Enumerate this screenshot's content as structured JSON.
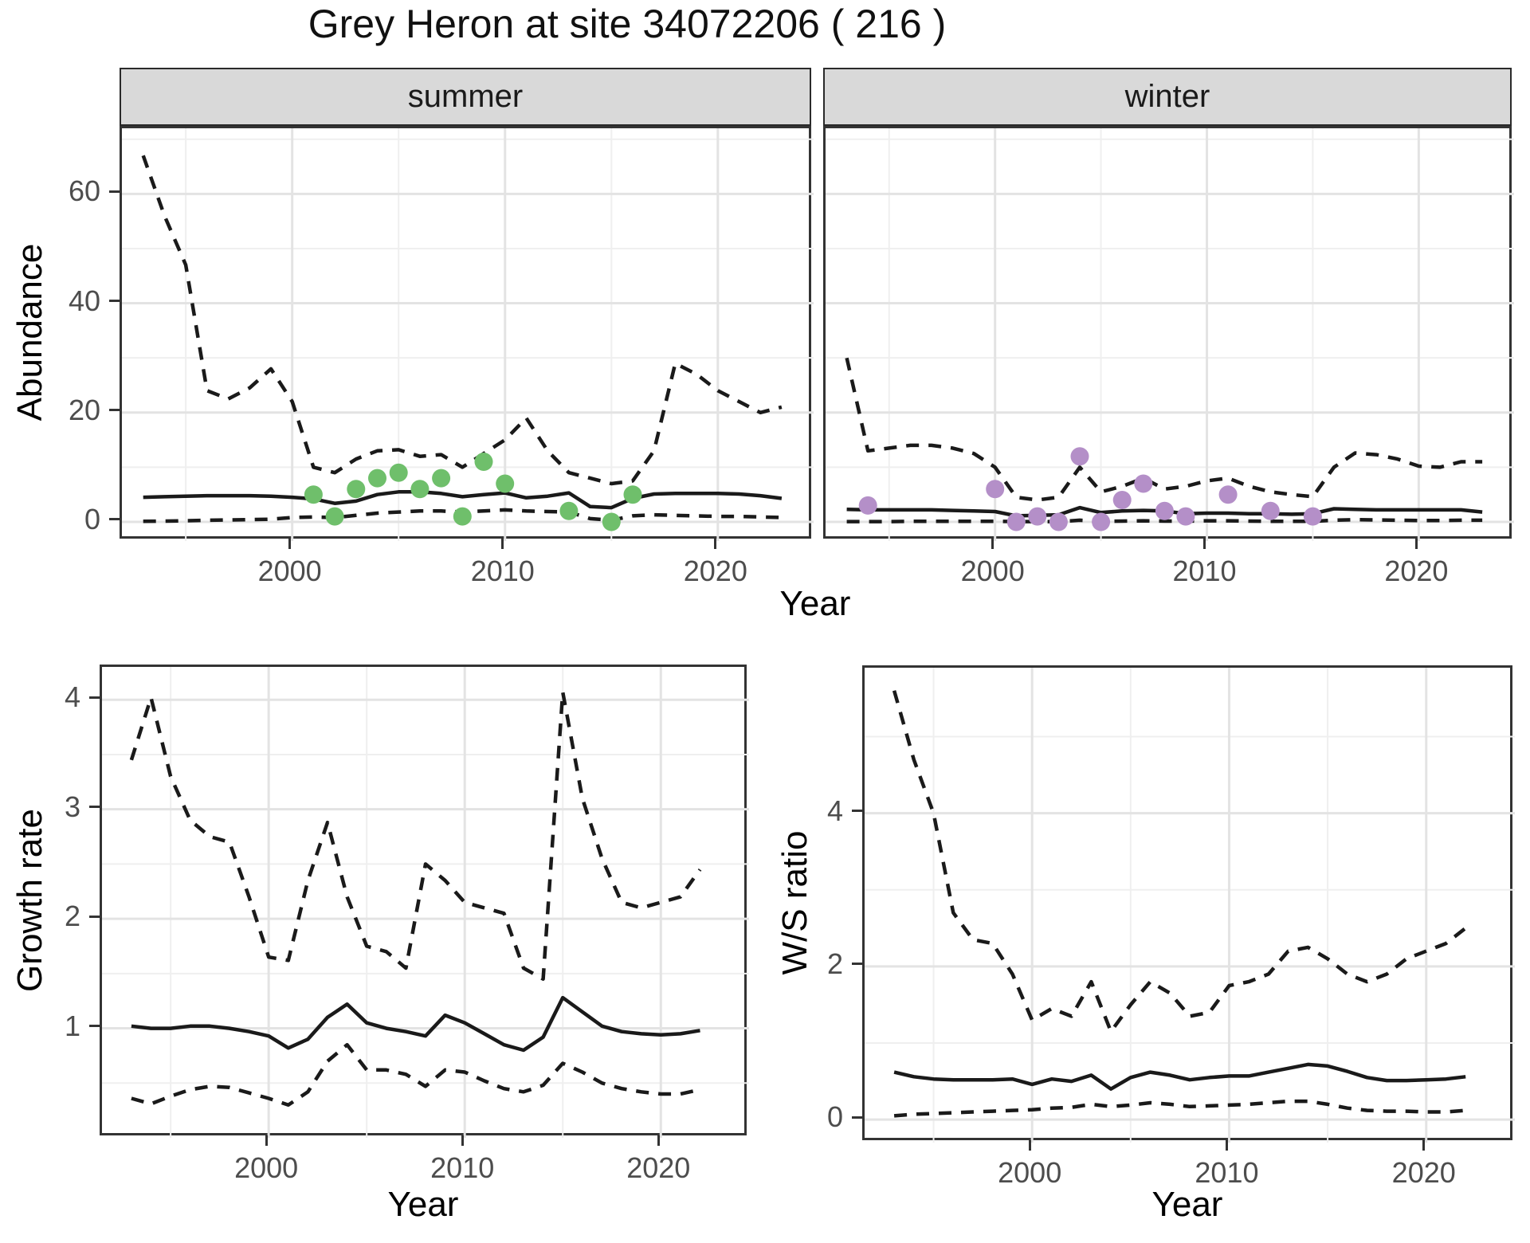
{
  "title": "Grey Heron at site 34072206 ( 216 )",
  "top_row": {
    "ylabel": "Abundance",
    "xlabel": "Year",
    "facets": [
      {
        "label": "summer"
      },
      {
        "label": "winter"
      }
    ]
  },
  "bottom_row": {
    "growth": {
      "ylabel": "Growth rate",
      "xlabel": "Year"
    },
    "ws": {
      "ylabel": "W/S ratio",
      "xlabel": "Year"
    }
  },
  "colors": {
    "summer_points": "#6fbf6b",
    "winter_points": "#b48fc8",
    "line": "#1a1a1a",
    "grid_major": "#e3e3e3",
    "grid_minor": "#efefef",
    "strip_bg": "#d9d9d9",
    "axis_text": "#4d4d4d",
    "panel_border": "#333333"
  },
  "chart_data": [
    {
      "id": "abundance_summer",
      "type": "line",
      "facet": "summer",
      "ylabel": "Abundance",
      "xlabel": "Year",
      "x_ticks": [
        2000,
        2010,
        2020
      ],
      "x_minor": [
        1995,
        2005,
        2015
      ],
      "xlim": [
        1992,
        2024.5
      ],
      "y_ticks": [
        0,
        20,
        40,
        60
      ],
      "y_minor": [
        10,
        30,
        50,
        70
      ],
      "ylim": [
        -3.5,
        72
      ],
      "years": [
        1993,
        1994,
        1995,
        1996,
        1997,
        1998,
        1999,
        2000,
        2001,
        2002,
        2003,
        2004,
        2005,
        2006,
        2007,
        2008,
        2009,
        2010,
        2011,
        2012,
        2013,
        2014,
        2015,
        2016,
        2017,
        2018,
        2019,
        2020,
        2021,
        2022,
        2023
      ],
      "series": [
        {
          "name": "upper_95ci",
          "style": "dashed",
          "values": [
            67,
            56,
            47,
            24,
            22.5,
            24.5,
            28,
            22,
            10,
            9,
            11.5,
            13,
            13.2,
            12,
            12.3,
            10,
            12.5,
            15,
            19,
            13,
            9,
            8,
            7,
            7.5,
            13,
            29,
            27,
            24,
            22,
            20,
            21
          ]
        },
        {
          "name": "mean",
          "style": "solid",
          "values": [
            4.5,
            4.6,
            4.7,
            4.8,
            4.8,
            4.8,
            4.7,
            4.5,
            4.2,
            3.4,
            3.8,
            5.0,
            5.5,
            5.5,
            5.2,
            4.6,
            5.0,
            5.3,
            4.4,
            4.7,
            5.3,
            2.8,
            2.6,
            4.3,
            5.1,
            5.2,
            5.2,
            5.2,
            5.1,
            4.8,
            4.3
          ]
        },
        {
          "name": "lower_95ci",
          "style": "dashed",
          "values": [
            0.1,
            0.15,
            0.2,
            0.3,
            0.35,
            0.4,
            0.5,
            0.8,
            0.9,
            0.8,
            1.2,
            1.6,
            1.8,
            2.0,
            2.0,
            1.8,
            2.0,
            2.2,
            2.0,
            1.9,
            1.8,
            0.6,
            0.3,
            1.1,
            1.3,
            1.2,
            1.1,
            1.0,
            1.0,
            0.9,
            0.8
          ]
        }
      ],
      "observed": {
        "years": [
          2001,
          2002,
          2003,
          2004,
          2005,
          2006,
          2007,
          2008,
          2009,
          2010,
          2013,
          2015,
          2016
        ],
        "values": [
          5,
          1,
          6,
          8,
          9,
          6,
          8,
          1,
          11,
          7,
          2,
          0,
          5
        ],
        "color_key": "summer_points"
      }
    },
    {
      "id": "abundance_winter",
      "type": "line",
      "facet": "winter",
      "ylabel": "Abundance",
      "xlabel": "Year",
      "x_ticks": [
        2000,
        2010,
        2020
      ],
      "x_minor": [
        1995,
        2005,
        2015
      ],
      "xlim": [
        1992,
        2024.5
      ],
      "y_ticks": [
        0,
        20,
        40,
        60
      ],
      "y_minor": [
        10,
        30,
        50,
        70
      ],
      "ylim": [
        -3.5,
        72
      ],
      "years": [
        1993,
        1994,
        1995,
        1996,
        1997,
        1998,
        1999,
        2000,
        2001,
        2002,
        2003,
        2004,
        2005,
        2006,
        2007,
        2008,
        2009,
        2010,
        2011,
        2012,
        2013,
        2014,
        2015,
        2016,
        2017,
        2018,
        2019,
        2020,
        2021,
        2022,
        2023
      ],
      "series": [
        {
          "name": "upper_95ci",
          "style": "dashed",
          "values": [
            30,
            13,
            13.5,
            14,
            14,
            13.5,
            12.5,
            10,
            4.5,
            4,
            4.5,
            10,
            5.5,
            6.5,
            8,
            6,
            6.5,
            7.5,
            8,
            6.5,
            5.5,
            5,
            4.6,
            10,
            12.6,
            12.3,
            11.5,
            10.2,
            10,
            11,
            11
          ]
        },
        {
          "name": "mean",
          "style": "solid",
          "values": [
            2.3,
            2.2,
            2.2,
            2.2,
            2.2,
            2.1,
            2.0,
            1.9,
            1.1,
            1.2,
            1.3,
            2.6,
            1.7,
            2.0,
            2.1,
            2.0,
            1.5,
            1.6,
            1.6,
            1.5,
            1.5,
            1.4,
            1.5,
            2.4,
            2.3,
            2.2,
            2.2,
            2.2,
            2.2,
            2.2,
            1.8
          ]
        },
        {
          "name": "lower_95ci",
          "style": "dashed",
          "values": [
            0.05,
            0.05,
            0.05,
            0.1,
            0.1,
            0.1,
            0.1,
            0.1,
            0.05,
            0.05,
            0.05,
            0.3,
            0.1,
            0.15,
            0.2,
            0.15,
            0.15,
            0.2,
            0.2,
            0.15,
            0.1,
            0.1,
            0.1,
            0.3,
            0.4,
            0.35,
            0.3,
            0.25,
            0.25,
            0.3,
            0.3
          ]
        }
      ],
      "observed": {
        "years": [
          1994,
          2000,
          2001,
          2002,
          2003,
          2004,
          2005,
          2006,
          2007,
          2008,
          2009,
          2011,
          2013,
          2015
        ],
        "values": [
          3,
          6,
          0,
          1,
          0,
          12,
          0,
          4,
          7,
          2,
          1,
          5,
          2,
          1
        ],
        "color_key": "winter_points"
      }
    },
    {
      "id": "growth_rate",
      "type": "line",
      "facet": null,
      "ylabel": "Growth rate",
      "xlabel": "Year",
      "x_ticks": [
        2000,
        2010,
        2020
      ],
      "x_minor": [
        1995,
        2005,
        2015
      ],
      "xlim": [
        1991.5,
        2024.5
      ],
      "y_ticks": [
        1,
        2,
        3,
        4
      ],
      "y_minor": [
        0.5,
        1.5,
        2.5,
        3.5
      ],
      "ylim": [
        0,
        4.3
      ],
      "years": [
        1993,
        1994,
        1995,
        1996,
        1997,
        1998,
        1999,
        2000,
        2001,
        2002,
        2003,
        2004,
        2005,
        2006,
        2007,
        2008,
        2009,
        2010,
        2011,
        2012,
        2013,
        2014,
        2015,
        2016,
        2017,
        2018,
        2019,
        2020,
        2021,
        2022
      ],
      "series": [
        {
          "name": "upper_95ci",
          "style": "dashed",
          "values": [
            3.45,
            4.02,
            3.3,
            2.9,
            2.75,
            2.7,
            2.2,
            1.65,
            1.62,
            2.35,
            2.88,
            2.2,
            1.75,
            1.7,
            1.55,
            2.5,
            2.35,
            2.15,
            2.1,
            2.05,
            1.55,
            1.45,
            4.07,
            3.1,
            2.55,
            2.15,
            2.1,
            2.15,
            2.2,
            2.45
          ]
        },
        {
          "name": "mean",
          "style": "solid",
          "values": [
            1.02,
            1.0,
            1.0,
            1.02,
            1.02,
            1.0,
            0.97,
            0.93,
            0.82,
            0.9,
            1.1,
            1.22,
            1.05,
            1.0,
            0.97,
            0.93,
            1.12,
            1.05,
            0.95,
            0.85,
            0.8,
            0.92,
            1.28,
            1.15,
            1.02,
            0.97,
            0.95,
            0.94,
            0.95,
            0.98
          ]
        },
        {
          "name": "lower_95ci",
          "style": "dashed",
          "values": [
            0.36,
            0.31,
            0.38,
            0.44,
            0.47,
            0.46,
            0.41,
            0.36,
            0.3,
            0.42,
            0.7,
            0.85,
            0.62,
            0.62,
            0.58,
            0.47,
            0.62,
            0.6,
            0.52,
            0.45,
            0.42,
            0.48,
            0.68,
            0.6,
            0.5,
            0.45,
            0.42,
            0.4,
            0.4,
            0.44
          ]
        }
      ],
      "observed": null
    },
    {
      "id": "ws_ratio",
      "type": "line",
      "facet": null,
      "ylabel": "W/S ratio",
      "xlabel": "Year",
      "x_ticks": [
        2000,
        2010,
        2020
      ],
      "x_minor": [
        1995,
        2005,
        2015
      ],
      "xlim": [
        1991.5,
        2024.5
      ],
      "y_ticks": [
        0,
        2,
        4
      ],
      "y_minor": [
        1,
        3,
        5
      ],
      "ylim": [
        -0.3,
        5.9
      ],
      "years": [
        1993,
        1994,
        1995,
        1996,
        1997,
        1998,
        1999,
        2000,
        2001,
        2002,
        2003,
        2004,
        2005,
        2006,
        2007,
        2008,
        2009,
        2010,
        2011,
        2012,
        2013,
        2014,
        2015,
        2016,
        2017,
        2018,
        2019,
        2020,
        2021,
        2022
      ],
      "series": [
        {
          "name": "upper_95ci",
          "style": "dashed",
          "values": [
            5.6,
            4.7,
            4.0,
            2.7,
            2.35,
            2.3,
            1.9,
            1.3,
            1.45,
            1.35,
            1.8,
            1.15,
            1.5,
            1.8,
            1.65,
            1.35,
            1.4,
            1.75,
            1.8,
            1.9,
            2.2,
            2.25,
            2.1,
            1.9,
            1.8,
            1.9,
            2.1,
            2.2,
            2.3,
            2.5
          ]
        },
        {
          "name": "mean",
          "style": "solid",
          "values": [
            0.62,
            0.56,
            0.53,
            0.52,
            0.52,
            0.52,
            0.53,
            0.46,
            0.53,
            0.5,
            0.58,
            0.4,
            0.55,
            0.62,
            0.58,
            0.52,
            0.55,
            0.57,
            0.57,
            0.62,
            0.67,
            0.72,
            0.7,
            0.63,
            0.55,
            0.51,
            0.51,
            0.52,
            0.53,
            0.56
          ]
        },
        {
          "name": "lower_95ci",
          "style": "dashed",
          "values": [
            0.05,
            0.07,
            0.08,
            0.09,
            0.1,
            0.11,
            0.12,
            0.13,
            0.15,
            0.16,
            0.2,
            0.17,
            0.19,
            0.22,
            0.2,
            0.17,
            0.18,
            0.19,
            0.2,
            0.22,
            0.24,
            0.24,
            0.2,
            0.15,
            0.12,
            0.11,
            0.11,
            0.1,
            0.1,
            0.12
          ]
        }
      ],
      "observed": null
    }
  ]
}
